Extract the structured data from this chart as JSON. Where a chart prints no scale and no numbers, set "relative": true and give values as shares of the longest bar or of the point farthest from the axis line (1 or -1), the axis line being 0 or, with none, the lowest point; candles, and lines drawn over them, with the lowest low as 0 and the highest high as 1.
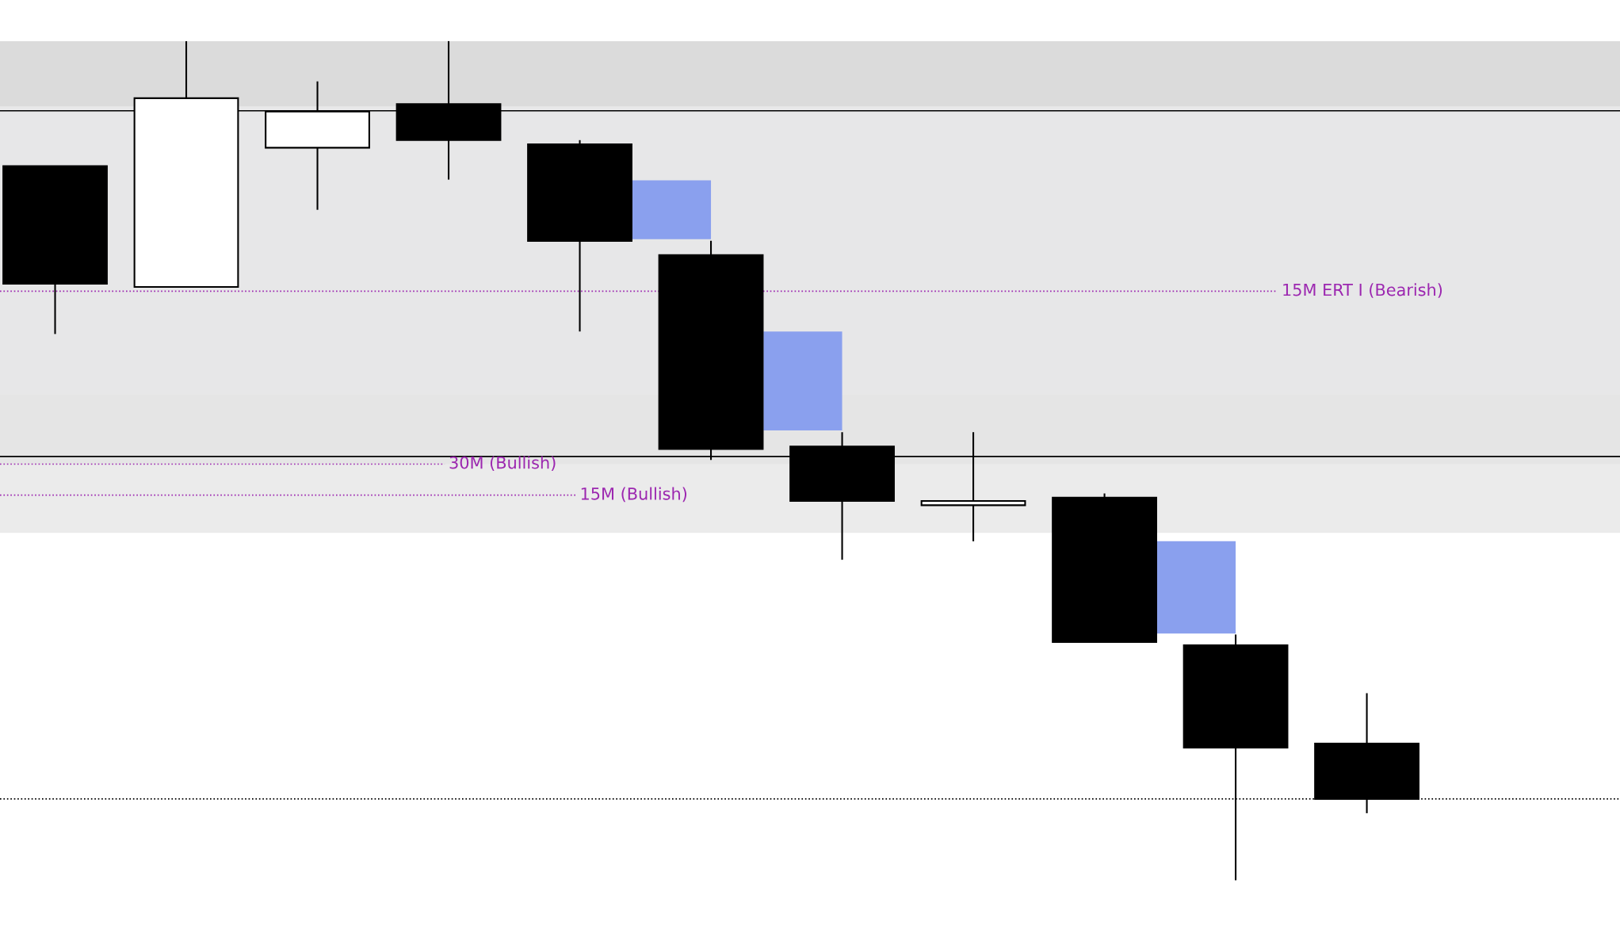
{
  "chart_data": {
    "type": "candlestick",
    "relative": true,
    "categories": [
      null,
      null,
      null,
      null,
      null,
      null,
      null,
      null,
      null,
      null,
      null
    ],
    "ohlc": [
      [
        0.851,
        0.851,
        0.651,
        0.711
      ],
      [
        0.707,
        1.0,
        0.707,
        0.932
      ],
      [
        0.873,
        0.952,
        0.799,
        0.916
      ],
      [
        0.925,
        1.0,
        0.835,
        0.882
      ],
      [
        0.877,
        0.882,
        0.654,
        0.762
      ],
      [
        0.745,
        0.762,
        0.501,
        0.514
      ],
      [
        0.517,
        0.534,
        0.382,
        0.452
      ],
      [
        0.447,
        0.534,
        0.404,
        0.452
      ],
      [
        0.456,
        0.461,
        0.284,
        0.284
      ],
      [
        0.28,
        0.293,
        0.0,
        0.158
      ],
      [
        0.163,
        0.223,
        0.08,
        0.097
      ]
    ],
    "series": [
      {
        "type": "bar",
        "color": "#8aa0ee",
        "base": [
          null,
          null,
          null,
          null,
          null,
          0.764,
          0.536,
          null,
          null,
          0.294,
          null
        ],
        "values": [
          null,
          null,
          null,
          null,
          null,
          0.07,
          0.118,
          null,
          null,
          0.11,
          null
        ]
      }
    ],
    "bands": [
      {
        "axis": "y",
        "from": 0.922,
        "to": 1.0,
        "color": "#b0b0b0"
      },
      {
        "axis": "y",
        "from": 0.579,
        "to": 0.922,
        "color": "#cccdcf"
      },
      {
        "axis": "y",
        "from": 0.496,
        "to": 0.906,
        "color": "#e6e6e6"
      },
      {
        "axis": "y",
        "from": 0.414,
        "to": 0.579,
        "color": "#d3d3d3"
      }
    ],
    "ref_lines": [
      {
        "axis": "y",
        "value": 0.702,
        "label": "15M ERT I (Bearish)",
        "color": "#9c27b0",
        "line_style": "dotted"
      },
      {
        "axis": "y",
        "value": 0.496,
        "label": "30M (Bullish)",
        "color": "#9c27b0",
        "line_style": "dotted"
      },
      {
        "axis": "y",
        "value": 0.459,
        "label": "15M (Bullish)",
        "color": "#9c27b0",
        "line_style": "dotted"
      },
      {
        "axis": "y",
        "value": 0.097,
        "color": "#000000",
        "line_style": "dotted"
      },
      {
        "axis": "y",
        "value": 0.917,
        "color": "#000000",
        "line_style": "solid"
      },
      {
        "axis": "y",
        "value": 0.505,
        "color": "#000000",
        "line_style": "solid"
      }
    ],
    "grid": false
  }
}
